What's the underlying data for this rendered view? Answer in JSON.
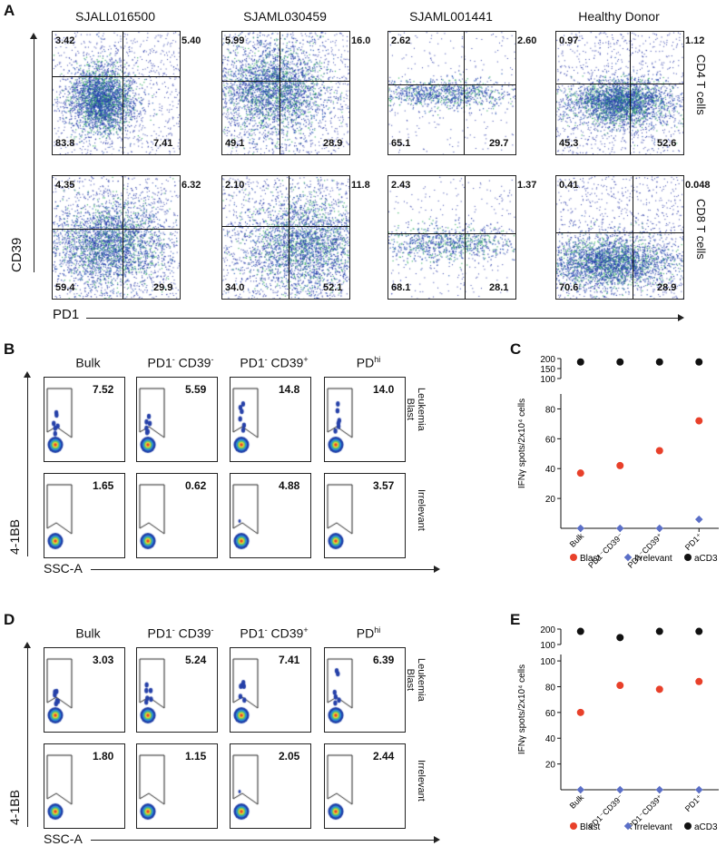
{
  "panelA": {
    "label": "A",
    "columns": [
      "SJALL016500",
      "SJAML030459",
      "SJAML001441",
      "Healthy Donor"
    ],
    "rows": [
      "CD4 T cells",
      "CD8 T cells"
    ],
    "ylabel": "CD39",
    "xlabel": "PD1",
    "quadrants": [
      [
        [
          "3.42",
          "5.40",
          "83.8",
          "7.41"
        ],
        [
          "5.99",
          "16.0",
          "49.1",
          "28.9"
        ],
        [
          "2.62",
          "2.60",
          "65.1",
          "29.7"
        ],
        [
          "0.97",
          "1.12",
          "45.3",
          "52.6"
        ]
      ],
      [
        [
          "4.35",
          "6.32",
          "59.4",
          "29.9"
        ],
        [
          "2.10",
          "11.8",
          "34.0",
          "52.1"
        ],
        [
          "2.43",
          "1.37",
          "68.1",
          "28.1"
        ],
        [
          "0.41",
          "0.048",
          "70.6",
          "28.9"
        ]
      ]
    ]
  },
  "panelB": {
    "label": "B",
    "columns": [
      "Bulk",
      "PD1",
      "PD1",
      "PD"
    ],
    "col_sup": [
      [
        "",
        ""
      ],
      [
        "-",
        "-"
      ],
      [
        "-",
        "+"
      ],
      [
        "hi",
        ""
      ]
    ],
    "col_cd": [
      "",
      "CD39",
      "CD39",
      ""
    ],
    "rows": [
      "Leukemia\nBlast",
      "Irrelevant"
    ],
    "row_lines": [
      [
        "Leukemia",
        "Blast"
      ],
      [
        "Irrelevant",
        ""
      ]
    ],
    "ylabel": "4-1BB",
    "xlabel": "SSC-A",
    "gates": [
      [
        "7.52",
        "5.59",
        "14.8",
        "14.0"
      ],
      [
        "1.65",
        "0.62",
        "4.88",
        "3.57"
      ]
    ]
  },
  "panelC": {
    "label": "C",
    "chart_data": {
      "type": "scatter",
      "ylabel": "IFNγ spots/2x10⁴ cells",
      "categories": [
        "Bulk",
        "PD1⁻CD39⁻",
        "PD1⁻CD39⁺",
        "PD1⁺"
      ],
      "y_ticks_lower": [
        "20",
        "40",
        "60",
        "80"
      ],
      "y_ticks_upper": [
        "100",
        "150",
        "200"
      ],
      "ylim_lower": [
        0,
        90
      ],
      "ylim_upper": [
        100,
        200
      ],
      "series": [
        {
          "name": "Blast",
          "color": "#e8402a",
          "values": [
            37,
            42,
            52,
            72
          ]
        },
        {
          "name": "Irrelevant",
          "color": "#5b6fc7",
          "values": [
            0,
            0,
            0,
            6
          ]
        },
        {
          "name": "aCD3",
          "color": "#111111",
          "values": [
            183,
            183,
            183,
            183
          ]
        }
      ]
    }
  },
  "panelD": {
    "label": "D",
    "columns": [
      "Bulk",
      "PD1",
      "PD1",
      "PD"
    ],
    "col_sup": [
      [
        "",
        ""
      ],
      [
        "-",
        "-"
      ],
      [
        "-",
        "+"
      ],
      [
        "hi",
        ""
      ]
    ],
    "col_cd": [
      "",
      "CD39",
      "CD39",
      ""
    ],
    "row_lines": [
      [
        "Leukemia",
        "Blast"
      ],
      [
        "Irrelevant",
        ""
      ]
    ],
    "ylabel": "4-1BB",
    "xlabel": "SSC-A",
    "gates": [
      [
        "3.03",
        "5.24",
        "7.41",
        "6.39"
      ],
      [
        "1.80",
        "1.15",
        "2.05",
        "2.44"
      ]
    ]
  },
  "panelE": {
    "label": "E",
    "chart_data": {
      "type": "scatter",
      "ylabel": "IFNγ spots/2x10⁴ cells",
      "categories": [
        "Bulk",
        "PD1⁻CD39⁻",
        "PD1⁻CD39⁺",
        "PD1⁺"
      ],
      "y_ticks_lower": [
        "20",
        "40",
        "60",
        "80",
        "100"
      ],
      "y_ticks_upper": [
        "100",
        "200"
      ],
      "ylim_lower": [
        0,
        105
      ],
      "ylim_upper": [
        100,
        200
      ],
      "series": [
        {
          "name": "Blast",
          "color": "#e8402a",
          "values": [
            60,
            81,
            78,
            84
          ]
        },
        {
          "name": "Irrelevant",
          "color": "#5b6fc7",
          "values": [
            0,
            0,
            0,
            0
          ]
        },
        {
          "name": "aCD3",
          "color": "#111111",
          "values": [
            185,
            145,
            185,
            185
          ]
        }
      ]
    }
  }
}
